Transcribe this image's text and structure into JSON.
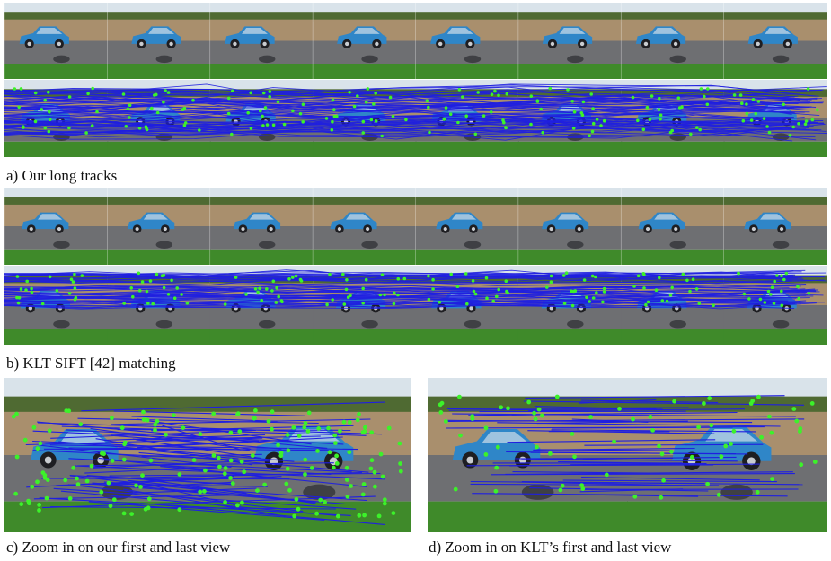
{
  "captions": {
    "a": "a) Our long tracks",
    "b": "b) KLT SIFT [42] matching",
    "c": "c) Zoom in on our first and last view",
    "d": "d) Zoom in on KLT’s first and last view"
  },
  "colors": {
    "track_line": "#1f1fe0",
    "feature_point": "#3cf22a",
    "sky": "#d9e3ea",
    "hedge": "#4f6a32",
    "brick_wall": "#a98f6d",
    "road": "#6e6f72",
    "grass": "#3f8a2a",
    "car_body": "#2f86c8",
    "tire": "#1e1e22"
  },
  "layout_meta": {
    "frames_per_strip": 8,
    "strips": [
      "a-top",
      "a-bottom",
      "b-top",
      "b-bottom"
    ]
  }
}
